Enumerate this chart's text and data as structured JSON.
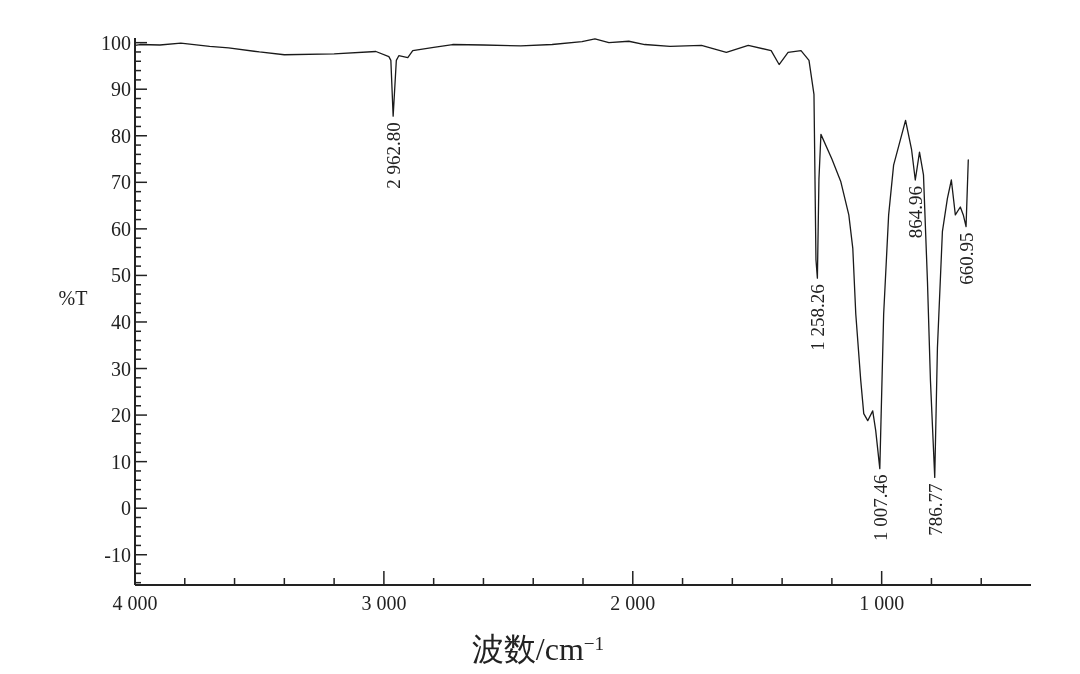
{
  "chart_data": {
    "type": "line",
    "xlabel": "波数/cm$^{−1}$",
    "ylabel": "%T",
    "xlim": [
      4000,
      400
    ],
    "ylim": [
      -16.5,
      101
    ],
    "xticks": [
      {
        "value": 4000,
        "label": "4 000"
      },
      {
        "value": 3800,
        "label": null
      },
      {
        "value": 3600,
        "label": null
      },
      {
        "value": 3400,
        "label": null
      },
      {
        "value": 3200,
        "label": null
      },
      {
        "value": 3000,
        "label": "3 000"
      },
      {
        "value": 2800,
        "label": null
      },
      {
        "value": 2600,
        "label": null
      },
      {
        "value": 2400,
        "label": null
      },
      {
        "value": 2200,
        "label": null
      },
      {
        "value": 2000,
        "label": "2 000"
      },
      {
        "value": 1800,
        "label": null
      },
      {
        "value": 1600,
        "label": null
      },
      {
        "value": 1400,
        "label": null
      },
      {
        "value": 1200,
        "label": null
      },
      {
        "value": 1000,
        "label": "1 000"
      },
      {
        "value": 800,
        "label": null
      },
      {
        "value": 600,
        "label": null
      }
    ],
    "yticks": [
      -10,
      0,
      10,
      20,
      30,
      40,
      50,
      60,
      70,
      80,
      90,
      100,
      {
        "value": -16,
        "label": null
      },
      {
        "value": -14,
        "label": null
      },
      {
        "value": -12,
        "label": null
      },
      {
        "value": -8,
        "label": null
      },
      {
        "value": -6,
        "label": null
      },
      {
        "value": -4,
        "label": null
      },
      {
        "value": -2,
        "label": null
      },
      {
        "value": 2,
        "label": null
      },
      {
        "value": 4,
        "label": null
      },
      {
        "value": 6,
        "label": null
      },
      {
        "value": 8,
        "label": null
      },
      {
        "value": 12,
        "label": null
      },
      {
        "value": 14,
        "label": null
      },
      {
        "value": 16,
        "label": null
      },
      {
        "value": 18,
        "label": null
      },
      {
        "value": 22,
        "label": null
      },
      {
        "value": 24,
        "label": null
      },
      {
        "value": 26,
        "label": null
      },
      {
        "value": 28,
        "label": null
      },
      {
        "value": 32,
        "label": null
      },
      {
        "value": 34,
        "label": null
      },
      {
        "value": 36,
        "label": null
      },
      {
        "value": 38,
        "label": null
      },
      {
        "value": 42,
        "label": null
      },
      {
        "value": 44,
        "label": null
      },
      {
        "value": 46,
        "label": null
      },
      {
        "value": 48,
        "label": null
      },
      {
        "value": 52,
        "label": null
      },
      {
        "value": 54,
        "label": null
      },
      {
        "value": 56,
        "label": null
      },
      {
        "value": 58,
        "label": null
      },
      {
        "value": 62,
        "label": null
      },
      {
        "value": 64,
        "label": null
      },
      {
        "value": 66,
        "label": null
      },
      {
        "value": 68,
        "label": null
      },
      {
        "value": 72,
        "label": null
      },
      {
        "value": 74,
        "label": null
      },
      {
        "value": 76,
        "label": null
      },
      {
        "value": 78,
        "label": null
      },
      {
        "value": 82,
        "label": null
      },
      {
        "value": 84,
        "label": null
      },
      {
        "value": 86,
        "label": null
      },
      {
        "value": 88,
        "label": null
      },
      {
        "value": 92,
        "label": null
      },
      {
        "value": 94,
        "label": null
      },
      {
        "value": 96,
        "label": null
      },
      {
        "value": 98,
        "label": null
      }
    ],
    "grid": false,
    "marker": "none",
    "line_style": "solid",
    "series": [
      {
        "color": "#1a1a1a",
        "x": [
          4000,
          3980,
          3900,
          3816,
          3700,
          3624,
          3500,
          3400,
          3200,
          3032,
          2980,
          2972,
          2962.8,
          2950,
          2940,
          2904,
          2884,
          2800,
          2724,
          2600,
          2450,
          2324,
          2204,
          2152,
          2096,
          2016,
          1952,
          1850,
          1724,
          1624,
          1536,
          1444,
          1412,
          1376,
          1324,
          1292,
          1272,
          1264,
          1258.26,
          1252,
          1244,
          1200,
          1164,
          1132,
          1116,
          1104,
          1084,
          1072,
          1056,
          1036,
          1024,
          1007.46,
          992,
          972,
          952,
          904,
          880,
          864.96,
          848,
          832,
          816,
          804,
          786.77,
          776,
          756,
          736,
          720,
          704,
          684,
          672,
          660.95,
          652
        ],
        "values": [
          99.4,
          99.6,
          99.5,
          99.9,
          99.2,
          98.9,
          98,
          97.4,
          97.6,
          98.1,
          97,
          96.2,
          84.2,
          96.2,
          97.2,
          96.8,
          98.3,
          99,
          99.6,
          99.5,
          99.3,
          99.6,
          100.2,
          100.8,
          100,
          100.3,
          99.6,
          99.2,
          99.4,
          97.9,
          99.4,
          98.3,
          95.3,
          97.9,
          98.3,
          96.2,
          88.9,
          53.4,
          49.4,
          70.7,
          80.3,
          75,
          70.1,
          63,
          55.8,
          41.7,
          27.4,
          20.3,
          18.8,
          20.9,
          16.7,
          8.5,
          41.7,
          63,
          73.7,
          83.3,
          77.1,
          70.5,
          76.5,
          71.6,
          48.7,
          27.4,
          6.6,
          34.4,
          59.4,
          66.5,
          70.5,
          63,
          64.7,
          63,
          60.5,
          74.8
        ]
      }
    ],
    "annotations": [
      {
        "text": "2 962.80",
        "x": 2962.8,
        "y": 84.2
      },
      {
        "text": "1 258.26",
        "x": 1258.26,
        "y": 49.4
      },
      {
        "text": "1 007.46",
        "x": 1007.46,
        "y": 8.5
      },
      {
        "text": "864.96",
        "x": 864.96,
        "y": 70.5
      },
      {
        "text": "786.77",
        "x": 786.77,
        "y": 6.6
      },
      {
        "text": "660.95",
        "x": 660.95,
        "y": 60.5
      }
    ]
  }
}
